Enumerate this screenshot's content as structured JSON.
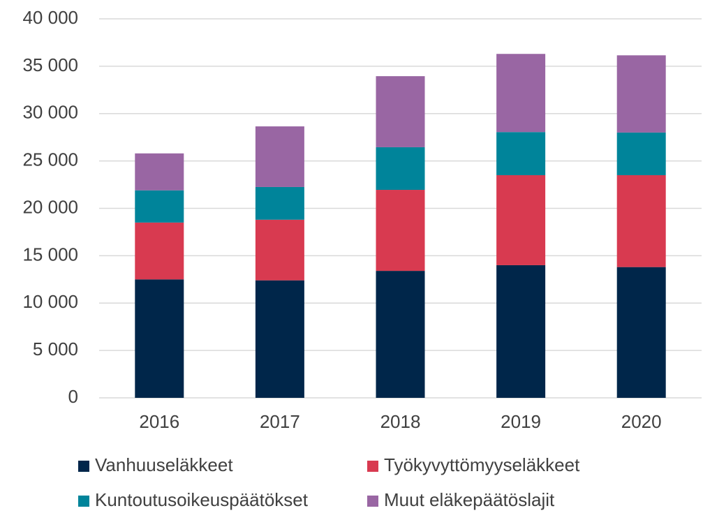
{
  "chart_data": {
    "type": "stacked_bar",
    "categories": [
      "2016",
      "2017",
      "2018",
      "2019",
      "2020"
    ],
    "series": [
      {
        "name": "Vanhuuseläkkeet",
        "color": "#00264a",
        "values": [
          12500,
          12400,
          13400,
          14000,
          13800
        ]
      },
      {
        "name": "Työkyvyttömyyseläkkeet",
        "color": "#d83a50",
        "values": [
          6000,
          6400,
          8550,
          9500,
          9700
        ]
      },
      {
        "name": "Kuntoutusoikeuspäätökset",
        "color": "#00849a",
        "values": [
          3400,
          3450,
          4500,
          4550,
          4500
        ]
      },
      {
        "name": "Muut eläkepäätöslajit",
        "color": "#9966a3",
        "values": [
          3900,
          6400,
          7500,
          8250,
          8150
        ]
      }
    ],
    "ylim": [
      0,
      40000
    ],
    "yticks": [
      0,
      {
        "value": 5000,
        "label": "5 000"
      },
      {
        "value": 10000,
        "label": "10 000"
      },
      {
        "value": 15000,
        "label": "15 000"
      },
      {
        "value": 20000,
        "label": "20 000"
      },
      {
        "value": 25000,
        "label": "25 000"
      },
      {
        "value": 30000,
        "label": "30 000"
      },
      {
        "value": 35000,
        "label": "35 000"
      },
      {
        "value": 40000,
        "label": "40 000"
      }
    ],
    "grid": true,
    "legend": "bottom"
  }
}
